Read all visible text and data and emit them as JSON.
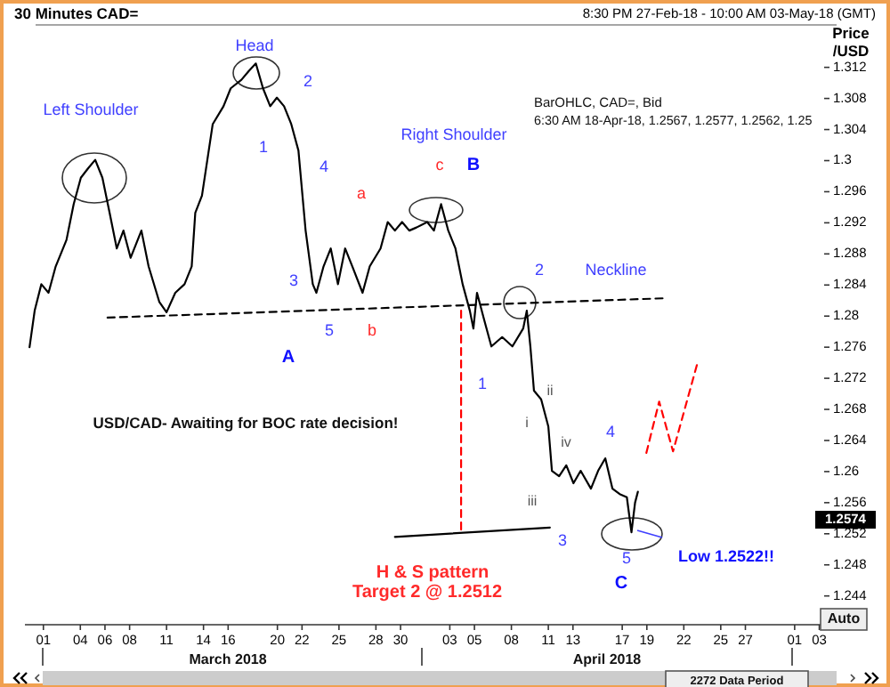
{
  "chart_data": {
    "type": "line",
    "title": "30 Minutes CAD=",
    "subtitle": "8:30 PM 27-Feb-18 - 10:00 AM 03-May-18 (GMT)",
    "ylabel": "Price /USD",
    "xlim": [
      "2018-02-27T12:00",
      "2018-05-03T06:00"
    ],
    "xticks": [
      {
        "value": "2018-03-01",
        "label": "01"
      },
      {
        "value": "2018-03-04",
        "label": "04"
      },
      {
        "value": "2018-03-06",
        "label": "06"
      },
      {
        "value": "2018-03-08",
        "label": "08"
      },
      {
        "value": "2018-03-11",
        "label": "11"
      },
      {
        "value": "2018-03-14",
        "label": "14"
      },
      {
        "value": "2018-03-16",
        "label": "16"
      },
      {
        "value": "2018-03-20",
        "label": "20"
      },
      {
        "value": "2018-03-22",
        "label": "22"
      },
      {
        "value": "2018-03-25",
        "label": "25"
      },
      {
        "value": "2018-03-28",
        "label": "28"
      },
      {
        "value": "2018-03-30",
        "label": "30"
      },
      {
        "value": "2018-04-03",
        "label": "03"
      },
      {
        "value": "2018-04-05",
        "label": "05"
      },
      {
        "value": "2018-04-08",
        "label": "08"
      },
      {
        "value": "2018-04-11",
        "label": "11"
      },
      {
        "value": "2018-04-13",
        "label": "13"
      },
      {
        "value": "2018-04-17",
        "label": "17"
      },
      {
        "value": "2018-04-19",
        "label": "19"
      },
      {
        "value": "2018-04-22",
        "label": "22"
      },
      {
        "value": "2018-04-25",
        "label": "25"
      },
      {
        "value": "2018-04-27",
        "label": "27"
      },
      {
        "value": "2018-05-01",
        "label": "01"
      },
      {
        "value": "2018-05-03",
        "label": "03"
      }
    ],
    "ylim": [
      1.2403,
      1.317
    ],
    "yticks": [
      1.244,
      1.248,
      1.252,
      1.256,
      1.26,
      1.264,
      1.268,
      1.272,
      1.276,
      1.28,
      1.284,
      1.288,
      1.292,
      1.296,
      1.3,
      1.304,
      1.308,
      1.312
    ],
    "marker": "none",
    "series": [
      {
        "color": "#000000",
        "line_style": "solid",
        "x": [
          "2018-02-27T21:00",
          "2018-02-28T07:00",
          "2018-02-28T20:00",
          "2018-03-01T10:00",
          "2018-03-02T00:00",
          "2018-03-02T21:00",
          "2018-03-03T11:00",
          "2018-03-04T01:00",
          "2018-03-04T15:00",
          "2018-03-05T05:00",
          "2018-03-05T19:00",
          "2018-03-06T09:00",
          "2018-03-06T23:00",
          "2018-03-07T12:00",
          "2018-03-08T02:00",
          "2018-03-08T23:00",
          "2018-03-09T13:00",
          "2018-03-10T10:00",
          "2018-03-11T00:00",
          "2018-03-11T17:00",
          "2018-03-12T11:00",
          "2018-03-13T01:00",
          "2018-03-13T08:00",
          "2018-03-13T21:00",
          "2018-03-14T18:00",
          "2018-03-15T15:00",
          "2018-03-16T05:00",
          "2018-03-17T02:00",
          "2018-03-17T16:00",
          "2018-03-18T06:00",
          "2018-03-18T20:00",
          "2018-03-19T10:00",
          "2018-03-19T23:00",
          "2018-03-20T13:00",
          "2018-03-21T03:00",
          "2018-03-21T17:00",
          "2018-03-22T07:00",
          "2018-03-22T21:00",
          "2018-03-23T04:00",
          "2018-03-23T18:00",
          "2018-03-24T08:00",
          "2018-03-24T22:00",
          "2018-03-25T12:00",
          "2018-03-26T02:00",
          "2018-03-26T22:00",
          "2018-03-27T12:00",
          "2018-03-28T09:00",
          "2018-03-28T23:00",
          "2018-03-29T13:00",
          "2018-03-30T03:00",
          "2018-03-30T17:00",
          "2018-03-31T07:00",
          "2018-04-01T04:00",
          "2018-04-01T17:00",
          "2018-04-02T07:00",
          "2018-04-02T21:00",
          "2018-04-03T11:00",
          "2018-04-04T01:00",
          "2018-04-04T15:00",
          "2018-04-04T22:00",
          "2018-04-05T05:00",
          "2018-04-05T19:00",
          "2018-04-06T09:00",
          "2018-04-07T06:00",
          "2018-04-08T02:00",
          "2018-04-08T23:00",
          "2018-04-09T06:00",
          "2018-04-09T13:00",
          "2018-04-09T20:00",
          "2018-04-10T10:00",
          "2018-04-11T00:00",
          "2018-04-11T07:00",
          "2018-04-11T21:00",
          "2018-04-12T11:00",
          "2018-04-13T01:00",
          "2018-04-13T15:00",
          "2018-04-14T11:00",
          "2018-04-15T01:00",
          "2018-04-15T15:00",
          "2018-04-16T05:00",
          "2018-04-16T19:00",
          "2018-04-17T09:00",
          "2018-04-17T18:00",
          "2018-04-18T01:00",
          "2018-04-18T06:30"
        ],
        "values": [
          1.276,
          1.2807,
          1.2841,
          1.283,
          1.2864,
          1.2898,
          1.2944,
          1.2978,
          1.299,
          1.3001,
          1.2978,
          1.2933,
          1.2887,
          1.291,
          1.2875,
          1.291,
          1.2864,
          1.2818,
          1.2805,
          1.283,
          1.2841,
          1.2864,
          1.2933,
          1.2955,
          1.3047,
          1.307,
          1.3093,
          1.3104,
          1.3115,
          1.3125,
          1.3093,
          1.307,
          1.3081,
          1.307,
          1.3047,
          1.3013,
          1.291,
          1.2841,
          1.283,
          1.2864,
          1.2887,
          1.2841,
          1.2887,
          1.2864,
          1.283,
          1.2864,
          1.2887,
          1.2921,
          1.291,
          1.2921,
          1.291,
          1.2914,
          1.2921,
          1.291,
          1.2944,
          1.291,
          1.2887,
          1.2841,
          1.2807,
          1.2784,
          1.283,
          1.2795,
          1.2761,
          1.2773,
          1.2761,
          1.2784,
          1.2807,
          1.2761,
          1.2704,
          1.2693,
          1.2658,
          1.2601,
          1.2594,
          1.2608,
          1.2585,
          1.2601,
          1.2578,
          1.2601,
          1.2617,
          1.2578,
          1.2571,
          1.2567,
          1.2522,
          1.256,
          1.2574
        ]
      },
      {
        "color": "#000000",
        "line_style": "dashed",
        "x": [
          "2018-03-06T05:00",
          "2018-04-20T13:00"
        ],
        "values": [
          1.2798,
          1.2823
        ]
      },
      {
        "color": "#000000",
        "line_style": "solid",
        "x": [
          "2018-03-29T13:00",
          "2018-04-11T03:00"
        ],
        "values": [
          1.2516,
          1.2528
        ]
      },
      {
        "color": "#ff0000",
        "line_style": "dashed",
        "x": [
          "2018-04-03T22:00",
          "2018-04-03T22:00"
        ],
        "values": [
          1.2807,
          1.2521
        ]
      },
      {
        "color": "#ff0000",
        "line_style": "dashed",
        "x": [
          "2018-04-18T23:00",
          "2018-04-20T00:00",
          "2018-04-21T03:00",
          "2018-04-23T04:00"
        ],
        "values": [
          1.2624,
          1.269,
          1.2626,
          1.2743
        ]
      }
    ],
    "annotations": [
      "Left Shoulder",
      "Head",
      "2",
      "1",
      "4",
      "a",
      "c",
      "B",
      "Right Shoulder",
      "3",
      "5",
      "b",
      "A",
      "2",
      "Neckline",
      "1",
      "ii",
      "i",
      "iv",
      "4",
      "iii",
      "3",
      "5",
      "C",
      "Low 1.2522!!",
      "H & S pattern",
      "Target 2 @ 1.2512",
      "USD/CAD- Awaiting for BOC rate decision!",
      "BarOHLC, CAD=, Bid",
      "6:30 AM 18-Apr-18, 1.2567, 1.2577, 1.2562, 1.25",
      "1.2574",
      "March 2018",
      "April 2018",
      "2272 Data Period",
      "Auto"
    ]
  }
}
